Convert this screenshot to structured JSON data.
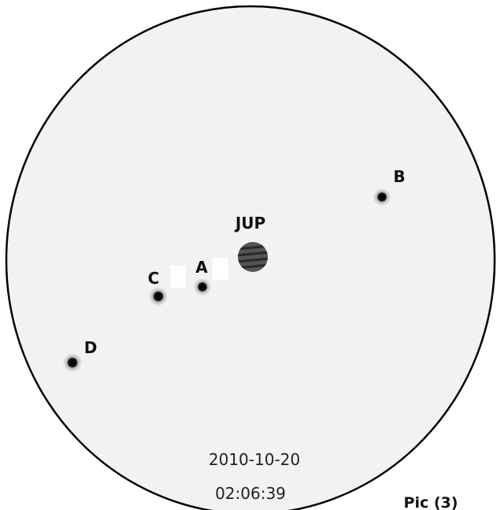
{
  "planet": {
    "label": "JUP"
  },
  "moons": [
    {
      "label": "A"
    },
    {
      "label": "B"
    },
    {
      "label": "C"
    },
    {
      "label": "D"
    }
  ],
  "timestamp": {
    "date": "2010-10-20",
    "time": "02:06:39"
  },
  "caption": "Pic (3)"
}
